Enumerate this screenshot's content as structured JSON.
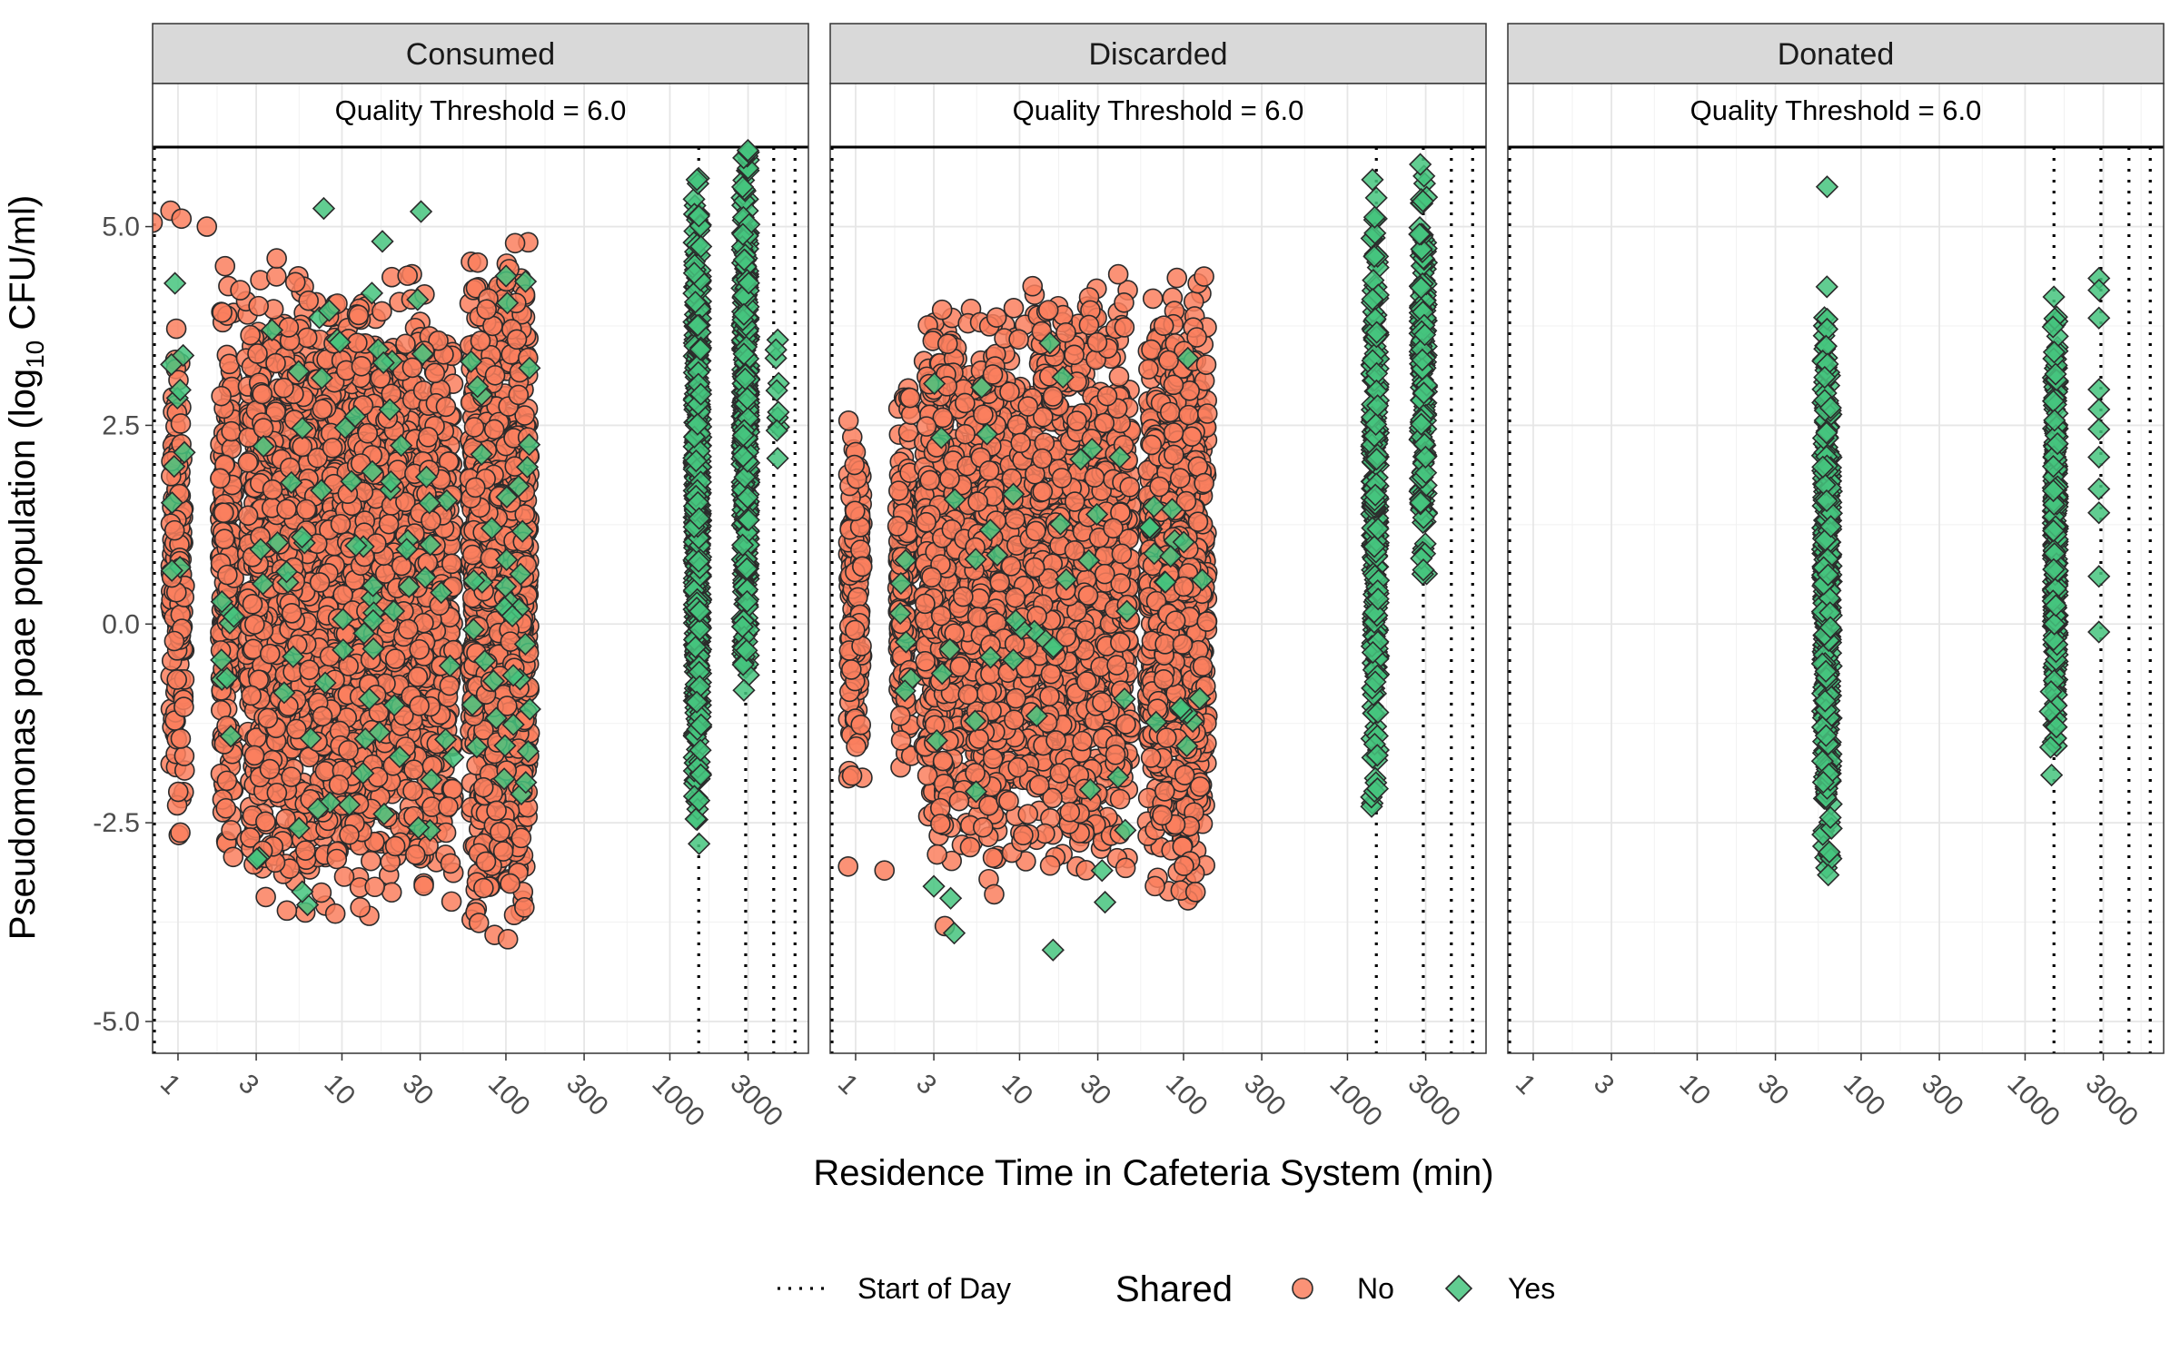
{
  "chart_data": {
    "type": "scatter",
    "xlabel": "Residence Time in Cafeteria System (min)",
    "ylabel_main": "Pseudomonas poae population (log",
    "ylabel_sub": "10",
    "ylabel_tail": " CFU/ml)",
    "x_scale": "log10",
    "xlim": [
      0.7,
      7000
    ],
    "ylim": [
      -5.4,
      6.8
    ],
    "x_ticks": [
      1,
      3,
      10,
      30,
      100,
      300,
      1000,
      3000
    ],
    "x_tick_labels": [
      "1",
      "3",
      "10",
      "30",
      "100",
      "300",
      "1000",
      "3000"
    ],
    "y_ticks": [
      -5.0,
      -2.5,
      0.0,
      2.5,
      5.0
    ],
    "y_tick_labels": [
      "-5.0",
      "-2.5",
      "0.0",
      "2.5",
      "5.0"
    ],
    "grid": true,
    "threshold": {
      "y": 6.0,
      "label": "Quality Threshold = 6.0"
    },
    "start_of_day_x": [
      1500,
      2900,
      4300,
      5800
    ],
    "legend": {
      "position": "bottom",
      "line_label": "Start of Day",
      "title": "Shared",
      "entries": [
        {
          "label": "No",
          "shape": "circle",
          "color": "#fa7f5e"
        },
        {
          "label": "Yes",
          "shape": "diamond",
          "color": "#45c47e"
        }
      ]
    },
    "colors": {
      "No": "#fa7f5e",
      "Yes": "#45c47e"
    },
    "panels": [
      {
        "label": "Consumed",
        "start_of_day_x": [
          1500,
          2900,
          4300,
          5800
        ],
        "no_clusters": [
          {
            "x": [
              0.9,
              1.1
            ],
            "y": [
              -3.0,
              3.9
            ],
            "n": 160
          },
          {
            "x": [
              1.8,
              2.2
            ],
            "y": [
              -3.3,
              4.6
            ],
            "n": 200
          },
          {
            "x": [
              2.6,
              48
            ],
            "y": [
              -3.7,
              4.5
            ],
            "n": 2600
          },
          {
            "x": [
              60,
              140
            ],
            "y": [
              -4.0,
              4.9
            ],
            "n": 1000
          }
        ],
        "yes_clusters": [
          {
            "x": [
              0.9,
              1.1
            ],
            "y": [
              -1.2,
              4.65
            ],
            "n": 10
          },
          {
            "x": [
              1.8,
              2.2
            ],
            "y": [
              -1.5,
              0.8
            ],
            "n": 8
          },
          {
            "x": [
              2.6,
              48
            ],
            "y": [
              -4.2,
              5.6
            ],
            "n": 80
          },
          {
            "x": [
              60,
              140
            ],
            "y": [
              -3.4,
              5.1
            ],
            "n": 40
          },
          {
            "x": [
              1400,
              1550
            ],
            "y": [
              -2.9,
              6.1
            ],
            "n": 500
          },
          {
            "x": [
              2750,
              3050
            ],
            "y": [
              -1.1,
              6.3
            ],
            "n": 450
          },
          {
            "x": [
              4350,
              4650
            ],
            "y": [
              1.6,
              4.7
            ],
            "n": 10
          }
        ],
        "no_points": [
          [
            0.7,
            5.05
          ],
          [
            0.9,
            5.2
          ],
          [
            1.05,
            5.1
          ],
          [
            1.5,
            5.0
          ],
          [
            2.4,
            4.2
          ],
          [
            3.1,
            4.0
          ],
          [
            4.0,
            4.6
          ],
          [
            5.2,
            4.3
          ]
        ],
        "yes_points": []
      },
      {
        "label": "Discarded",
        "start_of_day_x": [
          1500,
          2900,
          4300,
          5800
        ],
        "no_clusters": [
          {
            "x": [
              0.9,
              1.1
            ],
            "y": [
              -2.2,
              2.95
            ],
            "n": 140
          },
          {
            "x": [
              1.8,
              2.2
            ],
            "y": [
              -2.0,
              3.3
            ],
            "n": 160
          },
          {
            "x": [
              2.6,
              48
            ],
            "y": [
              -3.3,
              4.3
            ],
            "n": 2200
          },
          {
            "x": [
              60,
              140
            ],
            "y": [
              -3.5,
              4.5
            ],
            "n": 900
          }
        ],
        "yes_clusters": [
          {
            "x": [
              1.8,
              2.2
            ],
            "y": [
              -2.0,
              1.5
            ],
            "n": 6
          },
          {
            "x": [
              2.6,
              48
            ],
            "y": [
              -4.1,
              4.2
            ],
            "n": 40
          },
          {
            "x": [
              60,
              140
            ],
            "y": [
              -3.0,
              3.9
            ],
            "n": 20
          },
          {
            "x": [
              1400,
              1550
            ],
            "y": [
              -2.5,
              6.0
            ],
            "n": 280
          },
          {
            "x": [
              2750,
              3050
            ],
            "y": [
              0.5,
              6.0
            ],
            "n": 180
          }
        ],
        "no_points": [
          [
            0.9,
            -3.05
          ],
          [
            3.5,
            -3.8
          ],
          [
            1.5,
            -3.1
          ],
          [
            7,
            -3.4
          ],
          [
            15,
            3.95
          ],
          [
            12,
            4.25
          ],
          [
            40,
            4.4
          ]
        ],
        "yes_points": [
          [
            3.0,
            -3.3
          ],
          [
            3.8,
            -3.45
          ],
          [
            16,
            -4.1
          ]
        ]
      },
      {
        "label": "Donated",
        "start_of_day_x": [
          1500,
          2900,
          4300,
          5800
        ],
        "no_clusters": [],
        "yes_clusters": [
          {
            "x": [
              58,
              66
            ],
            "y": [
              -3.3,
              4.25
            ],
            "n": 380
          },
          {
            "x": [
              1480,
              1580
            ],
            "y": [
              -1.95,
              4.25
            ],
            "n": 260
          }
        ],
        "no_points": [],
        "yes_points": [
          [
            62,
            5.5
          ],
          [
            1420,
            -1.1
          ],
          [
            1440,
            -0.85
          ],
          [
            1430,
            -1.55
          ],
          [
            1450,
            -1.9
          ],
          [
            2820,
            4.35
          ],
          [
            2820,
            4.2
          ],
          [
            2820,
            3.85
          ],
          [
            2820,
            2.95
          ],
          [
            2820,
            2.7
          ],
          [
            2820,
            2.45
          ],
          [
            2820,
            2.1
          ],
          [
            2820,
            1.7
          ],
          [
            2820,
            1.4
          ],
          [
            2820,
            0.6
          ],
          [
            2820,
            -0.1
          ]
        ]
      }
    ]
  }
}
